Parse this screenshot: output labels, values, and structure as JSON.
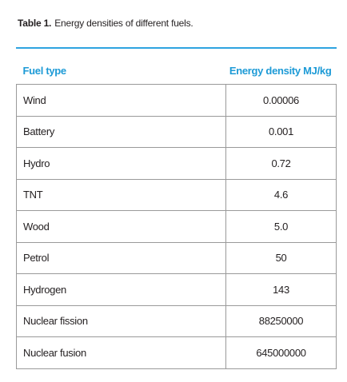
{
  "caption": {
    "label": "Table 1.",
    "text": "Energy densities of different fuels."
  },
  "table": {
    "headers": [
      "Fuel type",
      "Energy density MJ/kg"
    ],
    "rows": [
      [
        "Wind",
        "0.00006"
      ],
      [
        "Battery",
        "0.001"
      ],
      [
        "Hydro",
        "0.72"
      ],
      [
        "TNT",
        "4.6"
      ],
      [
        "Wood",
        "5.0"
      ],
      [
        "Petrol",
        "50"
      ],
      [
        "Hydrogen",
        "143"
      ],
      [
        "Nuclear fission",
        "88250000"
      ],
      [
        "Nuclear fusion",
        "645000000"
      ]
    ]
  }
}
